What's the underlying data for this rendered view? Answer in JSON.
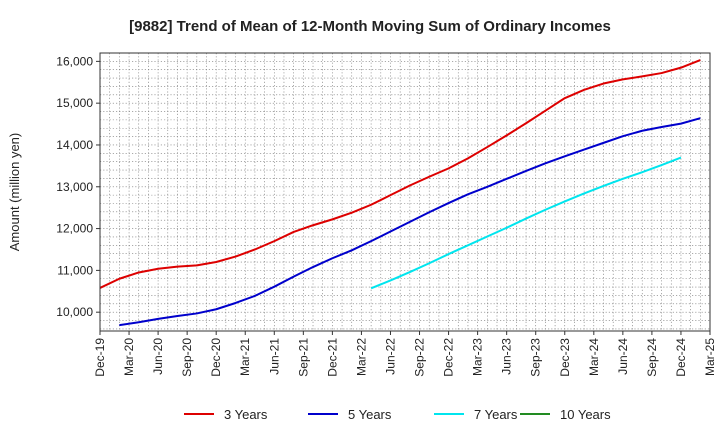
{
  "chart_data": {
    "type": "line",
    "title": "[9882]  Trend of Mean of 12-Month Moving Sum of Ordinary Incomes",
    "xlabel": "",
    "ylabel": "Amount (million yen)",
    "ylim": [
      9550,
      16200
    ],
    "yticks": [
      10000,
      11000,
      12000,
      13000,
      14000,
      15000,
      16000
    ],
    "ytick_labels": [
      "10,000",
      "11,000",
      "12,000",
      "13,000",
      "14,000",
      "15,000",
      "16,000"
    ],
    "xtick_labels": [
      "Dec-19",
      "Mar-20",
      "Jun-20",
      "Sep-20",
      "Dec-20",
      "Mar-21",
      "Jun-21",
      "Sep-21",
      "Dec-21",
      "Mar-22",
      "Jun-22",
      "Sep-22",
      "Dec-22",
      "Mar-23",
      "Jun-23",
      "Sep-23",
      "Dec-23",
      "Mar-24",
      "Jun-24",
      "Sep-24",
      "Dec-24",
      "Mar-25"
    ],
    "grid": true,
    "legend_position": "bottom",
    "series": [
      {
        "name": "3 Years",
        "color": "#dd0000",
        "start_index": 0,
        "values": [
          10580,
          10800,
          10950,
          11040,
          11090,
          11120,
          11200,
          11330,
          11500,
          11700,
          11920,
          12080,
          12220,
          12380,
          12570,
          12800,
          13030,
          13240,
          13440,
          13680,
          13950,
          14230,
          14520,
          14820,
          15120,
          15320,
          15470,
          15570,
          15640,
          15720,
          15850,
          16030
        ]
      },
      {
        "name": "5 Years",
        "color": "#0000cc",
        "start_index": 1,
        "values": [
          9690,
          9760,
          9840,
          9910,
          9970,
          10070,
          10220,
          10390,
          10610,
          10850,
          11080,
          11290,
          11480,
          11700,
          11930,
          12160,
          12390,
          12610,
          12820,
          13000,
          13190,
          13380,
          13560,
          13730,
          13890,
          14050,
          14210,
          14340,
          14430,
          14510,
          14640
        ]
      },
      {
        "name": "7 Years",
        "color": "#00e5ee",
        "start_index": 14,
        "values": [
          10570,
          10760,
          10960,
          11170,
          11390,
          11600,
          11810,
          12020,
          12240,
          12450,
          12650,
          12840,
          13020,
          13190,
          13350,
          13520,
          13700
        ]
      },
      {
        "name": "10 Years",
        "color": "#228b22",
        "start_index": 0,
        "values": []
      }
    ]
  }
}
